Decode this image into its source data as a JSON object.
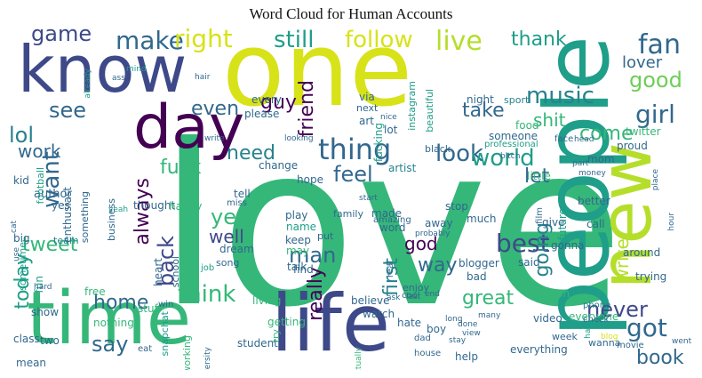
{
  "title": "Word Cloud for Human Accounts",
  "palette": [
    "#440154",
    "#482878",
    "#3e4989",
    "#31688e",
    "#26828e",
    "#1f9e89",
    "#35b779",
    "#6ece58",
    "#b5de2b",
    "#d8e219",
    "#fde725"
  ],
  "words": [
    {
      "text": "love",
      "size": 3
    },
    {
      "text": "people",
      "size": 2
    },
    {
      "text": "one",
      "size": 2
    },
    {
      "text": "know",
      "size": 2
    },
    {
      "text": "new",
      "size": 2
    },
    {
      "text": "life",
      "size": 2
    },
    {
      "text": "time",
      "size": 2
    },
    {
      "text": "day",
      "size": 2
    },
    {
      "text": "thing",
      "size": 1
    },
    {
      "text": "make",
      "size": 1
    },
    {
      "text": "right",
      "size": 1
    },
    {
      "text": "still",
      "size": 1
    },
    {
      "text": "follow",
      "size": 1
    },
    {
      "text": "live",
      "size": 1
    },
    {
      "text": "thank",
      "size": 1
    },
    {
      "text": "fan",
      "size": 1
    },
    {
      "text": "game",
      "size": 1
    },
    {
      "text": "good",
      "size": 1
    },
    {
      "text": "music",
      "size": 1
    },
    {
      "text": "girl",
      "size": 1
    },
    {
      "text": "lover",
      "size": 1
    },
    {
      "text": "see",
      "size": 1
    },
    {
      "text": "want",
      "size": 1
    },
    {
      "text": "lol",
      "size": 1
    },
    {
      "text": "work",
      "size": 1
    },
    {
      "text": "even",
      "size": 1
    },
    {
      "text": "guy",
      "size": 1
    },
    {
      "text": "need",
      "size": 1
    },
    {
      "text": "look",
      "size": 1
    },
    {
      "text": "world",
      "size": 1
    },
    {
      "text": "take",
      "size": 1
    },
    {
      "text": "come",
      "size": 1
    },
    {
      "text": "shit",
      "size": 1
    },
    {
      "text": "friend",
      "size": 1
    },
    {
      "text": "feel",
      "size": 1
    },
    {
      "text": "fuck",
      "size": 1
    },
    {
      "text": "always",
      "size": 1
    },
    {
      "text": "tweet",
      "size": 1
    },
    {
      "text": "back",
      "size": 1
    },
    {
      "text": "year",
      "size": 1
    },
    {
      "text": "well",
      "size": 1
    },
    {
      "text": "god",
      "size": 1
    },
    {
      "text": "best",
      "size": 1
    },
    {
      "text": "man",
      "size": 1
    },
    {
      "text": "way",
      "size": 1
    },
    {
      "text": "today",
      "size": 1
    },
    {
      "text": "think",
      "size": 1
    },
    {
      "text": "home",
      "size": 1
    },
    {
      "text": "say",
      "size": 1
    },
    {
      "text": "really",
      "size": 1
    },
    {
      "text": "first",
      "size": 1
    },
    {
      "text": "going",
      "size": 1
    },
    {
      "text": "great",
      "size": 1
    },
    {
      "text": "never",
      "size": 1
    },
    {
      "text": "writer",
      "size": 1
    },
    {
      "text": "got",
      "size": 1
    },
    {
      "text": "book",
      "size": 1
    },
    {
      "text": "let",
      "size": 1
    },
    {
      "text": "yes",
      "size": 0
    },
    {
      "text": "author",
      "size": 0
    },
    {
      "text": "big",
      "size": 0
    },
    {
      "text": "team",
      "size": 0
    },
    {
      "text": "cat",
      "size": 0
    },
    {
      "text": "yeah",
      "size": 0
    },
    {
      "text": "use",
      "size": 0
    },
    {
      "text": "kid",
      "size": 0
    },
    {
      "text": "football",
      "size": 0
    },
    {
      "text": "enthusiast",
      "size": 0
    },
    {
      "text": "something",
      "size": 0
    },
    {
      "text": "sometime",
      "size": 0
    },
    {
      "text": "fun",
      "size": 0
    },
    {
      "text": "show",
      "size": 0
    },
    {
      "text": "class",
      "size": 0
    },
    {
      "text": "two",
      "size": 0
    },
    {
      "text": "mean",
      "size": 0
    },
    {
      "text": "business",
      "size": 0
    },
    {
      "text": "thought",
      "size": 0
    },
    {
      "text": "happy",
      "size": 0
    },
    {
      "text": "heart",
      "size": 0
    },
    {
      "text": "school",
      "size": 0
    },
    {
      "text": "free",
      "size": 0
    },
    {
      "text": "stuff",
      "size": 0
    },
    {
      "text": "snapchat",
      "size": 0
    },
    {
      "text": "nothing",
      "size": 0
    },
    {
      "text": "eat",
      "size": 0
    },
    {
      "text": "working",
      "size": 0
    },
    {
      "text": "university",
      "size": 0
    },
    {
      "text": "student",
      "size": 0
    },
    {
      "text": "living",
      "size": 0
    },
    {
      "text": "getting",
      "size": 0
    },
    {
      "text": "try",
      "size": 0
    },
    {
      "text": "dream",
      "size": 0
    },
    {
      "text": "song",
      "size": 0
    },
    {
      "text": "job",
      "size": 0
    },
    {
      "text": "win",
      "size": 0
    },
    {
      "text": "hard",
      "size": 0
    },
    {
      "text": "every",
      "size": 0
    },
    {
      "text": "please",
      "size": 0
    },
    {
      "text": "change",
      "size": 0
    },
    {
      "text": "hope",
      "size": 0
    },
    {
      "text": "tell",
      "size": 0
    },
    {
      "text": "miss",
      "size": 0
    },
    {
      "text": "play",
      "size": 0
    },
    {
      "text": "name",
      "size": 0
    },
    {
      "text": "keep",
      "size": 0
    },
    {
      "text": "may",
      "size": 0
    },
    {
      "text": "talk",
      "size": 0
    },
    {
      "text": "find",
      "size": 0
    },
    {
      "text": "via",
      "size": 0
    },
    {
      "text": "next",
      "size": 0
    },
    {
      "text": "art",
      "size": 0
    },
    {
      "text": "instagram",
      "size": 0
    },
    {
      "text": "beautiful",
      "size": 0
    },
    {
      "text": "fucking",
      "size": 0
    },
    {
      "text": "lot",
      "size": 0
    },
    {
      "text": "nice",
      "size": 0
    },
    {
      "text": "night",
      "size": 0
    },
    {
      "text": "sport",
      "size": 0
    },
    {
      "text": "artist",
      "size": 0
    },
    {
      "text": "family",
      "size": 0
    },
    {
      "text": "made",
      "size": 0
    },
    {
      "text": "word",
      "size": 0
    },
    {
      "text": "put",
      "size": 0
    },
    {
      "text": "amazing",
      "size": 0
    },
    {
      "text": "real",
      "size": 0
    },
    {
      "text": "believe",
      "size": 0
    },
    {
      "text": "enjoy",
      "size": 0
    },
    {
      "text": "cool",
      "size": 0
    },
    {
      "text": "watch",
      "size": 0
    },
    {
      "text": "boy",
      "size": 0
    },
    {
      "text": "hate",
      "size": 0
    },
    {
      "text": "dad",
      "size": 0
    },
    {
      "text": "actually",
      "size": 0
    },
    {
      "text": "stop",
      "size": 0
    },
    {
      "text": "much",
      "size": 0
    },
    {
      "text": "away",
      "size": 0
    },
    {
      "text": "probably",
      "size": 0
    },
    {
      "text": "blogger",
      "size": 0
    },
    {
      "text": "bad",
      "size": 0
    },
    {
      "text": "said",
      "size": 0
    },
    {
      "text": "black",
      "size": 0
    },
    {
      "text": "someone",
      "size": 0
    },
    {
      "text": "food",
      "size": 0
    },
    {
      "text": "professional",
      "size": 0
    },
    {
      "text": "twitter",
      "size": 0
    },
    {
      "text": "proud",
      "size": 0
    },
    {
      "text": "mom",
      "size": 0
    },
    {
      "text": "little",
      "size": 0
    },
    {
      "text": "future",
      "size": 0
    },
    {
      "text": "give",
      "size": 0
    },
    {
      "text": "film",
      "size": 0
    },
    {
      "text": "better",
      "size": 0
    },
    {
      "text": "call",
      "size": 0
    },
    {
      "text": "gonna",
      "size": 0
    },
    {
      "text": "around",
      "size": 0
    },
    {
      "text": "trying",
      "size": 0
    },
    {
      "text": "person",
      "size": 0
    },
    {
      "text": "everyone",
      "size": 0
    },
    {
      "text": "everything",
      "size": 0
    },
    {
      "text": "video",
      "size": 0
    },
    {
      "text": "week",
      "size": 0
    },
    {
      "text": "wanna",
      "size": 0
    },
    {
      "text": "help",
      "size": 0
    },
    {
      "text": "long",
      "size": 0
    },
    {
      "text": "done",
      "size": 0
    },
    {
      "text": "view",
      "size": 0
    },
    {
      "text": "stay",
      "size": 0
    },
    {
      "text": "house",
      "size": 0
    },
    {
      "text": "phone",
      "size": 0
    },
    {
      "text": "check",
      "size": 0
    },
    {
      "text": "half",
      "size": 0
    },
    {
      "text": "blog",
      "size": 0
    },
    {
      "text": "movie",
      "size": 0
    },
    {
      "text": "went",
      "size": 0
    },
    {
      "text": "part",
      "size": 0
    },
    {
      "text": "money",
      "size": 0
    },
    {
      "text": "place",
      "size": 0
    },
    {
      "text": "hour",
      "size": 0
    },
    {
      "text": "head",
      "size": 0
    },
    {
      "text": "face",
      "size": 0
    },
    {
      "text": "bitch",
      "size": 0
    },
    {
      "text": "anything",
      "size": 0
    },
    {
      "text": "already",
      "size": 0
    },
    {
      "text": "baby",
      "size": 0
    },
    {
      "text": "mind",
      "size": 0
    },
    {
      "text": "hair",
      "size": 0
    },
    {
      "text": "write",
      "size": 0
    },
    {
      "text": "looking",
      "size": 0
    },
    {
      "text": "ass",
      "size": 0
    },
    {
      "text": "many",
      "size": 0
    },
    {
      "text": "end",
      "size": 0
    },
    {
      "text": "ask",
      "size": 0
    },
    {
      "text": "last",
      "size": 0
    },
    {
      "text": "start",
      "size": 0
    }
  ]
}
